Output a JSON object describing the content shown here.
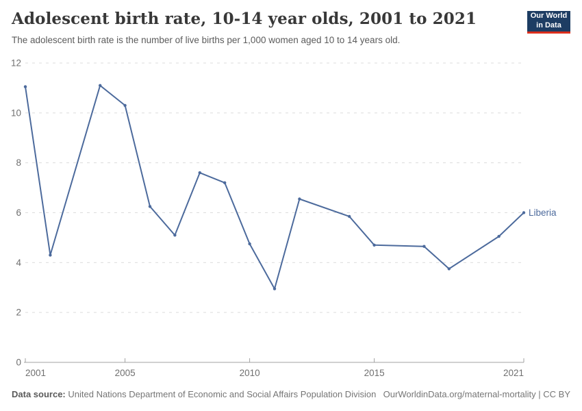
{
  "header": {
    "title": "Adolescent birth rate, 10-14 year olds, 2001 to 2021",
    "subtitle": "The adolescent birth rate is the number of live births per 1,000 women aged 10 to 14 years old.",
    "logo": {
      "line1": "Our World",
      "line2": "in Data",
      "bg_color": "#1d3d63",
      "accent_color": "#dc2e1c"
    }
  },
  "chart_data": {
    "type": "line",
    "title": "Adolescent birth rate, 10-14 year olds, 2001 to 2021",
    "xlabel": "",
    "ylabel": "",
    "xlim": [
      2001,
      2021
    ],
    "ylim": [
      0,
      12
    ],
    "xticks": [
      2001,
      2005,
      2010,
      2015,
      2021
    ],
    "yticks": [
      0,
      2,
      4,
      6,
      8,
      10,
      12
    ],
    "grid": "horizontal-dashed",
    "legend_position": "end-of-line-label",
    "series": [
      {
        "name": "Liberia",
        "color": "#4c6a9c",
        "points": [
          [
            2001,
            11.05
          ],
          [
            2002,
            4.3
          ],
          [
            2004,
            11.1
          ],
          [
            2005,
            10.3
          ],
          [
            2006,
            6.25
          ],
          [
            2007,
            5.1
          ],
          [
            2008,
            7.6
          ],
          [
            2009,
            7.2
          ],
          [
            2010,
            4.75
          ],
          [
            2011,
            2.95
          ],
          [
            2012,
            6.55
          ],
          [
            2014,
            5.85
          ],
          [
            2015,
            4.7
          ],
          [
            2017,
            4.65
          ],
          [
            2018,
            3.75
          ],
          [
            2020,
            5.05
          ],
          [
            2021,
            6.0
          ]
        ]
      }
    ],
    "colors": {
      "gridline": "#dcdcdc",
      "axis": "#a1a1a1",
      "tick_label": "#6f6f6f"
    }
  },
  "footer": {
    "source_label": "Data source:",
    "source_text": "United Nations Department of Economic and Social Affairs Population Division",
    "link_text": "OurWorldinData.org/maternal-mortality | CC BY"
  }
}
